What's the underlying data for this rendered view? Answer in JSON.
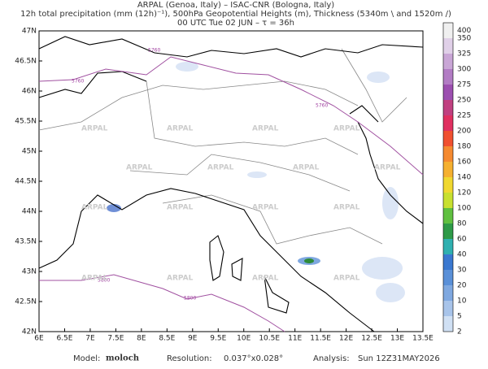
{
  "header": {
    "line1": "ARPAL (Genoa, Italy)  –  ISAC-CNR (Bologna, Italy)",
    "line2": "12h total precipitation (mm (12h)⁻¹), 500hPa Geopotential Heights (m), Thickness (5340m \\ and 1520m /)",
    "line3": "00 UTC Tue 02 JUN  –  τ = 36h"
  },
  "map": {
    "lon_labels": [
      "6E",
      "6.5E",
      "7E",
      "7.5E",
      "8E",
      "8.5E",
      "9E",
      "9.5E",
      "10E",
      "10.5E",
      "11E",
      "11.5E",
      "12E",
      "12.5E",
      "13E",
      "13.5E"
    ],
    "lat_labels": [
      "47N",
      "46.5N",
      "46N",
      "45.5N",
      "45N",
      "44.5N",
      "44N",
      "43.5N",
      "43N",
      "42.5N",
      "42N"
    ],
    "contour_labels": [
      "5760",
      "5760",
      "5760",
      "5800",
      "5800"
    ],
    "watermark": "ARPAL"
  },
  "colorbar": {
    "labels": [
      "400",
      "350",
      "325",
      "300",
      "275",
      "250",
      "225",
      "200",
      "180",
      "160",
      "140",
      "120",
      "100",
      "80",
      "60",
      "40",
      "30",
      "20",
      "10",
      "5",
      "2"
    ]
  },
  "footer": {
    "model_label": "Model:",
    "model": "moloch",
    "resolution_label": "Resolution:",
    "resolution": "0.037°x0.028°",
    "analysis_label": "Analysis:",
    "analysis": "Sun 12Z31MAY2026"
  }
}
